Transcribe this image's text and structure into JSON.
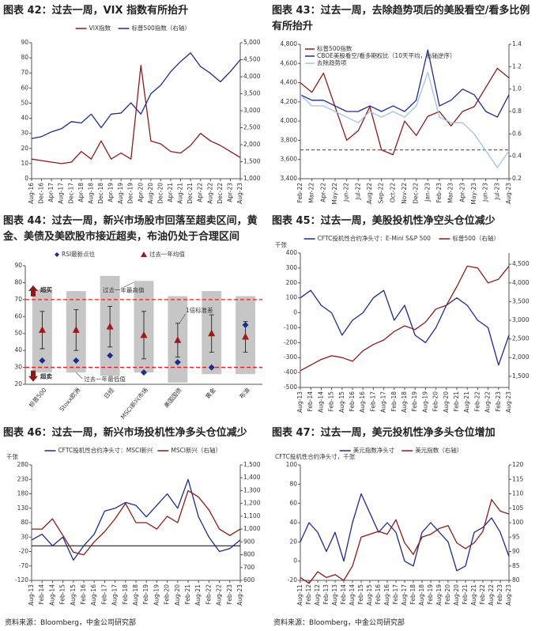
{
  "chart_data": [
    {
      "type": "line",
      "title": "图表 42：过去一周，VIX 指数有所抬升",
      "categories": [
        "Aug-16",
        "Dec-16",
        "Apr-17",
        "Aug-17",
        "Dec-17",
        "Apr-18",
        "Aug-18",
        "Dec-18",
        "Apr-19",
        "Aug-19",
        "Dec-19",
        "Apr-20",
        "Aug-20",
        "Dec-20",
        "Apr-21",
        "Aug-21",
        "Dec-21",
        "Apr-22",
        "Aug-22",
        "Dec-22",
        "Apr-23",
        "Aug-23"
      ],
      "series": [
        {
          "name": "VIX指数",
          "color": "#8b1a1a",
          "values": [
            13,
            12,
            11,
            10,
            11,
            18,
            13,
            25,
            13,
            17,
            13,
            75,
            25,
            23,
            18,
            17,
            22,
            30,
            25,
            22,
            18,
            14
          ]
        },
        {
          "name": "标普500指数（右轴）",
          "color": "#1f2a8c",
          "axis": "y2",
          "values": [
            2180,
            2240,
            2380,
            2470,
            2680,
            2640,
            2900,
            2500,
            2900,
            2930,
            3230,
            2900,
            3500,
            3750,
            4150,
            4450,
            4700,
            4300,
            4100,
            3850,
            4150,
            4500
          ]
        }
      ],
      "ylim": [
        0,
        90
      ],
      "yticks": [
        0,
        10,
        20,
        30,
        40,
        50,
        60,
        70,
        80,
        90
      ],
      "y2lim": [
        1000,
        5000
      ],
      "y2ticks": [
        {
          "value": 1000,
          "label": "1,000"
        },
        {
          "value": 1500,
          "label": "1,500"
        },
        {
          "value": 2000,
          "label": "2,000"
        },
        {
          "value": 2500,
          "label": "2,500"
        },
        {
          "value": 3000,
          "label": "3,000"
        },
        {
          "value": 3500,
          "label": "3,500"
        },
        {
          "value": 4000,
          "label": "4,000"
        },
        {
          "value": 4500,
          "label": "4,500"
        },
        {
          "value": 5000,
          "label": "5,000"
        }
      ],
      "legend": "top"
    },
    {
      "type": "line",
      "title": "图表 43：过去一周，去除趋势项后的美股看空/看多比例有所抬升",
      "categories": [
        "Feb-22",
        "Mar-22",
        "Apr-22",
        "May-22",
        "Jun-22",
        "Jul-22",
        "Aug-22",
        "Sep-22",
        "Oct-22",
        "Nov-22",
        "Dec-22",
        "Jan-23",
        "Feb-23",
        "Mar-23",
        "Apr-23",
        "May-23",
        "Jun-23",
        "Jul-23",
        "Aug-23"
      ],
      "series": [
        {
          "name": "标普500指数",
          "color": "#8b1a1a",
          "values": [
            4400,
            4300,
            4500,
            4150,
            3800,
            3900,
            4150,
            3700,
            3650,
            4000,
            3850,
            4050,
            4100,
            3950,
            4100,
            4150,
            4350,
            4550,
            4450
          ]
        },
        {
          "name": "CBOE美股看空/看多期权比（10天平均，右轴逆序）",
          "color": "#1f2a8c",
          "axis": "y2",
          "values": [
            0.95,
            0.9,
            0.9,
            0.85,
            0.8,
            0.8,
            0.85,
            0.8,
            0.85,
            0.8,
            0.9,
            1.35,
            0.85,
            0.9,
            1.0,
            0.95,
            0.8,
            0.75,
            0.95
          ]
        },
        {
          "name": "去除趋势项",
          "color": "#9ec3e6",
          "axis": "y2",
          "values": [
            0.95,
            0.85,
            0.85,
            0.8,
            0.75,
            0.7,
            0.8,
            0.75,
            0.8,
            0.75,
            0.85,
            1.15,
            0.75,
            0.7,
            0.7,
            0.6,
            0.45,
            0.3,
            0.45
          ]
        }
      ],
      "ylim": [
        3400,
        4800
      ],
      "yticks": [
        {
          "value": 3400,
          "label": "3,400"
        },
        {
          "value": 3600,
          "label": "3,600"
        },
        {
          "value": 3800,
          "label": "3,800"
        },
        {
          "value": 4000,
          "label": "4,000"
        },
        {
          "value": 4200,
          "label": "4,200"
        },
        {
          "value": 4400,
          "label": "4,400"
        },
        {
          "value": 4600,
          "label": "4,600"
        },
        {
          "value": 4800,
          "label": "4,800"
        }
      ],
      "y2lim": [
        0.2,
        1.4
      ],
      "y2ticks": [
        0.2,
        0.4,
        0.6,
        0.8,
        {
          "value": 1,
          "label": "1.0"
        },
        1.2,
        1.4
      ],
      "threshold": 3700,
      "threshold_color": "#e02020",
      "legend": "inside"
    },
    {
      "type": "range",
      "title": "图表 44：过去一周，新兴市场股市回落至超卖区间，黄金、美债及美欧股市接近超卖，布油仍处于合理区间",
      "categories": [
        "标普500",
        "Stoxx欧洲",
        "日经",
        "MSCI新兴市场",
        "美国国债",
        "黄金",
        "布油"
      ],
      "low": [
        27,
        27,
        25,
        27,
        21,
        26,
        26
      ],
      "high": [
        76,
        75,
        84,
        81,
        72,
        75,
        72
      ],
      "series": [
        {
          "name": "RSI最新点位",
          "color": "#1f2a8c",
          "values": [
            34,
            34,
            37,
            27,
            33,
            30,
            55
          ]
        },
        {
          "name": "过去一年均值",
          "color": "#a01818",
          "values": [
            52,
            52,
            54,
            49,
            46,
            50,
            48
          ],
          "std": [
            11,
            12,
            12,
            14,
            10,
            11,
            9
          ]
        }
      ],
      "ylim": [
        20,
        90
      ],
      "yticks": [
        20,
        30,
        40,
        50,
        60,
        70,
        80,
        90
      ],
      "overbought": 70,
      "oversold": 30,
      "annotations": [
        "超买",
        "超卖",
        "过去一年最高值",
        "过去一年最低值",
        "1倍标准差"
      ]
    },
    {
      "type": "line",
      "title": "图表 45：过去一周，美股投机性净空头仓位减少",
      "y_label": "千张",
      "categories": [
        "Aug-13",
        "Feb-14",
        "Aug-14",
        "Feb-15",
        "Aug-15",
        "Feb-16",
        "Aug-16",
        "Feb-17",
        "Aug-17",
        "Feb-18",
        "Aug-18",
        "Feb-19",
        "Aug-19",
        "Feb-20",
        "Aug-20",
        "Feb-21",
        "Aug-21",
        "Feb-22",
        "Aug-22",
        "Feb-23",
        "Aug-23"
      ],
      "series": [
        {
          "name": "CFTC投机性合约净头寸：E-Mini S&P 500",
          "color": "#1f2a8c",
          "values": [
            100,
            150,
            50,
            0,
            -150,
            -50,
            0,
            100,
            150,
            -50,
            50,
            -150,
            -200,
            -100,
            50,
            100,
            50,
            -50,
            -100,
            -350,
            -150
          ]
        },
        {
          "name": "标普500（右轴）",
          "color": "#8b1a1a",
          "axis": "y2",
          "values": [
            1650,
            1800,
            1950,
            2050,
            2000,
            1900,
            2180,
            2350,
            2470,
            2700,
            2850,
            2750,
            2950,
            3300,
            3400,
            3900,
            4450,
            4400,
            4000,
            4100,
            4450
          ]
        }
      ],
      "ylim": [
        -500,
        400
      ],
      "yticks": [
        -500,
        -400,
        -300,
        -200,
        -100,
        0,
        100,
        200,
        300,
        400
      ],
      "y2lim": [
        1200,
        4800
      ],
      "y2ticks": [
        {
          "value": 1500,
          "label": "1,500"
        },
        {
          "value": 2000,
          "label": "2,000"
        },
        {
          "value": 2500,
          "label": "2,500"
        },
        {
          "value": 3000,
          "label": "3,000"
        },
        {
          "value": 3500,
          "label": "3,500"
        },
        {
          "value": 4000,
          "label": "4,000"
        },
        {
          "value": 4500,
          "label": "4,500"
        }
      ],
      "legend": "top"
    },
    {
      "type": "line",
      "title": "图表 46：过去一周，新兴市场投机性净多头仓位减少",
      "y_label": "千张",
      "categories": [
        "Aug-13",
        "Feb-14",
        "Aug-14",
        "Feb-15",
        "Aug-15",
        "Feb-16",
        "Aug-16",
        "Feb-17",
        "Aug-17",
        "Feb-18",
        "Aug-18",
        "Feb-19",
        "Aug-19",
        "Feb-20",
        "Aug-20",
        "Feb-21",
        "Aug-21",
        "Feb-22",
        "Aug-22",
        "Feb-23",
        "Aug-23"
      ],
      "series": [
        {
          "name": "CFTC投机性合约净头寸：MSCI新兴",
          "color": "#1f2a8c",
          "values": [
            20,
            40,
            0,
            30,
            -50,
            0,
            40,
            120,
            130,
            150,
            140,
            100,
            140,
            180,
            130,
            230,
            100,
            30,
            -20,
            -10,
            20
          ]
        },
        {
          "name": "MSCI新兴（右轴）",
          "color": "#8b1a1a",
          "axis": "y2",
          "values": [
            1000,
            1000,
            1080,
            950,
            820,
            800,
            900,
            980,
            1080,
            1200,
            1050,
            1050,
            1000,
            1100,
            1050,
            1300,
            1250,
            1150,
            1000,
            950,
            1000
          ]
        }
      ],
      "ylim": [
        -120,
        280
      ],
      "yticks": [
        -120,
        -70,
        -20,
        30,
        80,
        130,
        180,
        230,
        280
      ],
      "y2lim": [
        600,
        1500
      ],
      "y2ticks": [
        600,
        700,
        800,
        900,
        {
          "value": 1000,
          "label": "1,000"
        },
        {
          "value": 1100,
          "label": "1,100"
        },
        {
          "value": 1200,
          "label": "1,200"
        },
        {
          "value": 1300,
          "label": "1,300"
        },
        {
          "value": 1400,
          "label": "1,400"
        },
        {
          "value": 1500,
          "label": "1,500"
        }
      ],
      "zero_line": true,
      "legend": "top",
      "source": "资料来源：Bloomberg，中金公司研究部"
    },
    {
      "type": "line",
      "title": "图表 47：过去一周，美元投机性净多头仓位增加",
      "y_label": "CFTC投机性合约净头寸，千张",
      "categories": [
        "Aug-11",
        "Feb-12",
        "Aug-12",
        "Feb-13",
        "Aug-13",
        "Feb-14",
        "Aug-14",
        "Feb-15",
        "Aug-15",
        "Feb-16",
        "Aug-16",
        "Feb-17",
        "Aug-17",
        "Feb-18",
        "Aug-18",
        "Feb-19",
        "Aug-19",
        "Feb-20",
        "Aug-20",
        "Feb-21",
        "Aug-21",
        "Feb-22",
        "Aug-22",
        "Feb-23",
        "Aug-23"
      ],
      "series": [
        {
          "name": "美元指数净头寸",
          "color": "#1f2a8c",
          "values": [
            20,
            40,
            30,
            10,
            30,
            0,
            40,
            70,
            50,
            30,
            40,
            30,
            0,
            -5,
            30,
            40,
            30,
            20,
            -10,
            -5,
            30,
            35,
            45,
            30,
            5
          ]
        },
        {
          "name": "美元指数（右轴）",
          "color": "#8b1a1a",
          "axis": "y2",
          "values": [
            81,
            79,
            83,
            81,
            82,
            80,
            85,
            95,
            96,
            97,
            96,
            101,
            93,
            89,
            95,
            96,
            98,
            99,
            93,
            91,
            93,
            97,
            108,
            104,
            103
          ]
        }
      ],
      "ylim": [
        -20,
        100
      ],
      "yticks": [
        -20,
        0,
        20,
        40,
        60,
        80,
        100
      ],
      "y2lim": [
        80,
        120
      ],
      "y2ticks": [
        80,
        85,
        90,
        95,
        100,
        105,
        110,
        115,
        120
      ],
      "legend": "top",
      "source": "资料来源：Bloomberg，中金公司研究部"
    }
  ]
}
